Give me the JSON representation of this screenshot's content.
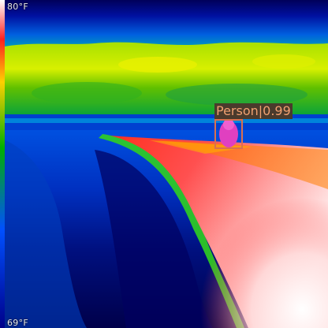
{
  "colorbar": {
    "max_label": "80°F",
    "min_label": "69°F",
    "palette": [
      "#ffffff",
      "#ff2020",
      "#ffd000",
      "#00b000",
      "#0050ff",
      "#00008a"
    ]
  },
  "detection": {
    "label": "Person|0.99",
    "box_color": "#d9704f",
    "label_text_color": "#f0a070",
    "label_bg_color": "#4a3a2c"
  }
}
